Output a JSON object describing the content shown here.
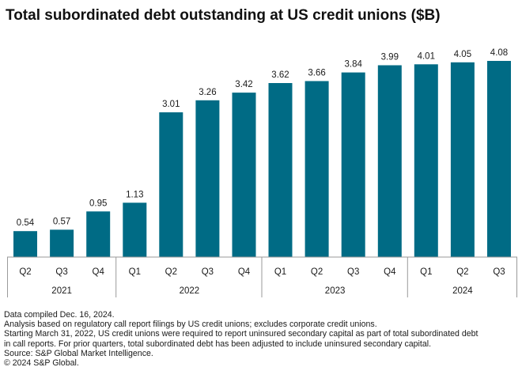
{
  "chart_data": {
    "type": "bar",
    "title": "Total subordinated debt outstanding at US credit unions ($B)",
    "categories": [
      "Q2",
      "Q3",
      "Q4",
      "Q1",
      "Q2",
      "Q3",
      "Q4",
      "Q1",
      "Q2",
      "Q3",
      "Q4",
      "Q1",
      "Q2",
      "Q3"
    ],
    "years": [
      {
        "label": "2021",
        "count": 3
      },
      {
        "label": "2022",
        "count": 4
      },
      {
        "label": "2023",
        "count": 4
      },
      {
        "label": "2024",
        "count": 3
      }
    ],
    "values": [
      0.54,
      0.57,
      0.95,
      1.13,
      3.01,
      3.26,
      3.42,
      3.62,
      3.66,
      3.84,
      3.99,
      4.01,
      4.05,
      4.08
    ],
    "value_labels": [
      "0.54",
      "0.57",
      "0.95",
      "1.13",
      "3.01",
      "3.26",
      "3.42",
      "3.62",
      "3.66",
      "3.84",
      "3.99",
      "4.01",
      "4.05",
      "4.08"
    ],
    "bar_color": "#006b85",
    "xlabel": "",
    "ylabel": "",
    "ylim": [
      0,
      4.08
    ],
    "grid": false
  },
  "notes": [
    "Data compiled Dec. 16, 2024.",
    "Analysis based on regulatory call report filings by US credit unions; excludes corporate credit unions.",
    "Starting March 31, 2022, US credit unions were required to report uninsured secondary capital as part of total subordinated debt",
    "in call reports. For prior quarters, total subordinated debt has been adjusted to include uninsured secondary capital.",
    "Source: S&P Global Market Intelligence.",
    "© 2024 S&P Global."
  ]
}
